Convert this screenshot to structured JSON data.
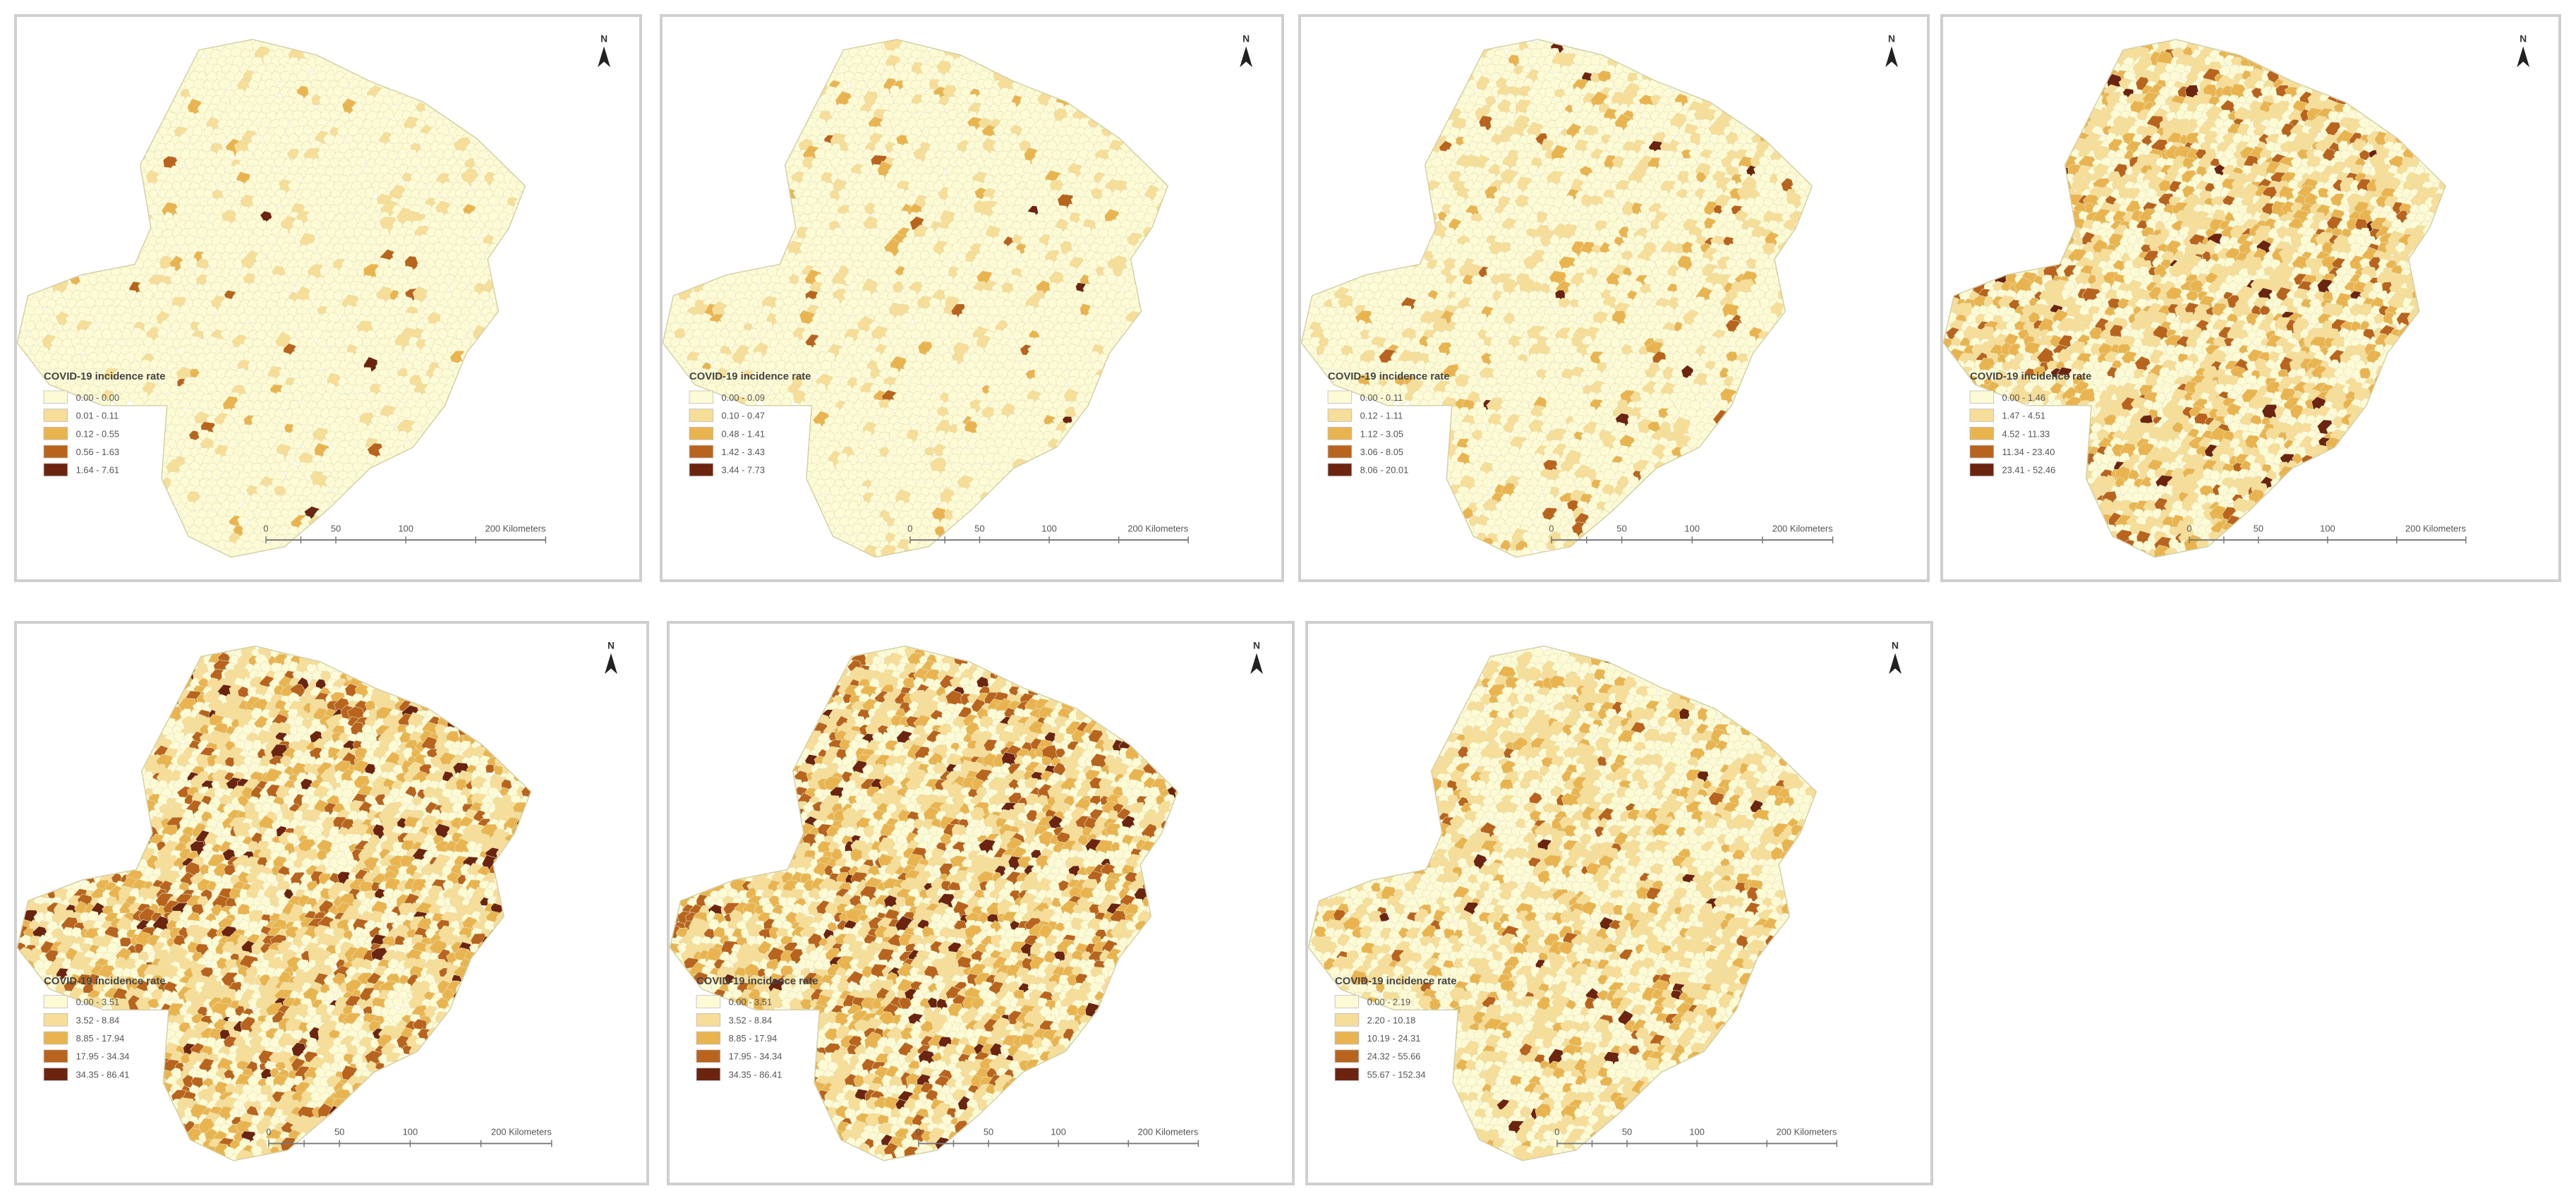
{
  "figure": {
    "legend_title": "COVID-19 incidence rate",
    "scale_labels": [
      "0",
      "50",
      "100",
      "200 Kilometers"
    ],
    "north_label": "N",
    "palette": [
      "#fdfbd6",
      "#f6dd98",
      "#e9b450",
      "#b8641e",
      "#6b2410"
    ]
  },
  "maps": [
    {
      "legend_labels": [
        "0.00 - 0.00",
        "0.01 - 0.11",
        "0.12 - 0.55",
        "0.56 - 1.63",
        "1.64 - 7.61"
      ],
      "class_shares": [
        0.93,
        0.055,
        0.01,
        0.004,
        0.001
      ]
    },
    {
      "legend_labels": [
        "0.00 - 0.09",
        "0.10 - 0.47",
        "0.48 - 1.41",
        "1.42 - 3.43",
        "3.44 - 7.73"
      ],
      "class_shares": [
        0.9,
        0.075,
        0.018,
        0.005,
        0.002
      ]
    },
    {
      "legend_labels": [
        "0.00 - 0.11",
        "0.12 - 1.11",
        "1.12 - 3.05",
        "3.06 - 8.05",
        "8.06 - 20.01"
      ],
      "class_shares": [
        0.8,
        0.14,
        0.045,
        0.012,
        0.003
      ]
    },
    {
      "legend_labels": [
        "0.00 - 1.46",
        "1.47 - 4.51",
        "4.52 - 11.33",
        "11.34 - 23.40",
        "23.41 - 52.46"
      ],
      "class_shares": [
        0.45,
        0.3,
        0.17,
        0.06,
        0.02
      ]
    },
    {
      "legend_labels": [
        "0.00 - 3.51",
        "3.52 - 8.84",
        "8.85 - 17.94",
        "17.95 - 34.34",
        "34.35 - 86.41"
      ],
      "class_shares": [
        0.4,
        0.27,
        0.2,
        0.1,
        0.03
      ]
    },
    {
      "legend_labels": [
        "0.00 - 3.51",
        "3.52 - 8.84",
        "8.85 - 17.94",
        "17.95 - 34.34",
        "34.35 - 86.41"
      ],
      "class_shares": [
        0.4,
        0.27,
        0.2,
        0.1,
        0.03
      ]
    },
    {
      "legend_labels": [
        "0.00 - 2.19",
        "2.20 - 10.18",
        "10.19 - 24.31",
        "24.32 - 55.66",
        "55.67 - 152.34"
      ],
      "class_shares": [
        0.55,
        0.3,
        0.12,
        0.025,
        0.005
      ]
    }
  ]
}
